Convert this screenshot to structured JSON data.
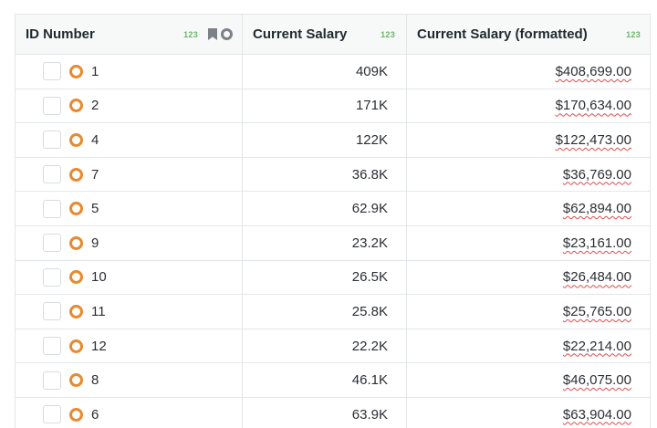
{
  "table": {
    "columns": [
      {
        "label": "ID Number",
        "type_badge": "123"
      },
      {
        "label": "Current Salary",
        "type_badge": "123"
      },
      {
        "label": "Current Salary (formatted)",
        "type_badge": "123"
      }
    ],
    "header_icons": [
      "bookmark-icon",
      "circle-icon"
    ],
    "accent_color": "#e8892f",
    "rows": [
      {
        "id": "1",
        "salary": "409K",
        "formatted": "$408,699.00"
      },
      {
        "id": "2",
        "salary": "171K",
        "formatted": "$170,634.00"
      },
      {
        "id": "4",
        "salary": "122K",
        "formatted": "$122,473.00"
      },
      {
        "id": "7",
        "salary": "36.8K",
        "formatted": "$36,769.00"
      },
      {
        "id": "5",
        "salary": "62.9K",
        "formatted": "$62,894.00"
      },
      {
        "id": "9",
        "salary": "23.2K",
        "formatted": "$23,161.00"
      },
      {
        "id": "10",
        "salary": "26.5K",
        "formatted": "$26,484.00"
      },
      {
        "id": "11",
        "salary": "25.8K",
        "formatted": "$25,765.00"
      },
      {
        "id": "12",
        "salary": "22.2K",
        "formatted": "$22,214.00"
      },
      {
        "id": "8",
        "salary": "46.1K",
        "formatted": "$46,075.00"
      },
      {
        "id": "6",
        "salary": "63.9K",
        "formatted": "$63,904.00"
      }
    ]
  }
}
